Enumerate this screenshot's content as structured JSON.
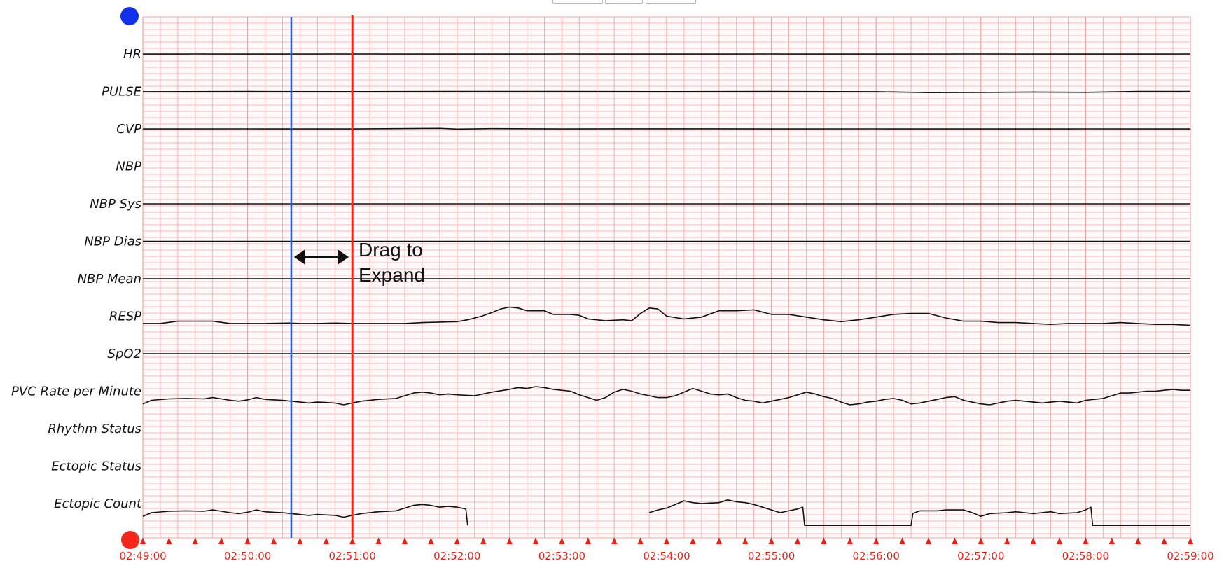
{
  "top_buttons": [
    "",
    "",
    ""
  ],
  "handles": {
    "top": {
      "color": "#1230e8"
    },
    "bottom": {
      "color": "#f2261a"
    }
  },
  "annotation": {
    "line1": "Drag to",
    "line2": "Expand"
  },
  "cursors": {
    "blue": {
      "time": "02:50:25",
      "color": "#2361e0"
    },
    "red": {
      "time": "02:51:00",
      "color": "#f2261a"
    }
  },
  "chart_data": {
    "type": "line",
    "time_range": [
      "02:49:00",
      "02:59:00"
    ],
    "grid": true,
    "grid_color": "#f3a3a3",
    "series_color": "#111111",
    "x_ticks": [
      "02:49:00",
      "02:50:00",
      "02:51:00",
      "02:52:00",
      "02:53:00",
      "02:54:00",
      "02:55:00",
      "02:56:00",
      "02:57:00",
      "02:58:00",
      "02:59:00"
    ],
    "series": [
      {
        "name": "HR",
        "points": [
          [
            0,
            0.99
          ],
          [
            30,
            1.0
          ],
          [
            60,
            0.99
          ],
          [
            120,
            1.0
          ],
          [
            180,
            0.99
          ],
          [
            240,
            1.0
          ],
          [
            300,
            0.99
          ],
          [
            360,
            1.0
          ],
          [
            420,
            0.99
          ],
          [
            480,
            1.0
          ],
          [
            540,
            0.99
          ],
          [
            600,
            1.0
          ]
        ]
      },
      {
        "name": "PULSE",
        "points": [
          [
            0,
            0.97
          ],
          [
            60,
            0.99
          ],
          [
            120,
            0.98
          ],
          [
            180,
            1.0
          ],
          [
            240,
            0.99
          ],
          [
            300,
            0.98
          ],
          [
            360,
            0.99
          ],
          [
            420,
            0.97
          ],
          [
            450,
            0.87
          ],
          [
            480,
            0.89
          ],
          [
            510,
            0.93
          ],
          [
            540,
            0.9
          ],
          [
            570,
            0.99
          ],
          [
            600,
            1.0
          ]
        ]
      },
      {
        "name": "CVP",
        "points": [
          [
            0,
            0.99
          ],
          [
            60,
            1.0
          ],
          [
            120,
            0.99
          ],
          [
            170,
            1.05
          ],
          [
            180,
            0.98
          ],
          [
            200,
            1.02
          ],
          [
            240,
            0.99
          ],
          [
            300,
            1.01
          ],
          [
            360,
            0.99
          ],
          [
            420,
            1.0
          ],
          [
            480,
            0.99
          ],
          [
            540,
            1.0
          ],
          [
            600,
            0.99
          ]
        ]
      },
      {
        "name": "NBP",
        "points": []
      },
      {
        "name": "NBP Sys",
        "points": [
          [
            0,
            1.0
          ],
          [
            600,
            1.0
          ]
        ]
      },
      {
        "name": "NBP Dias",
        "points": [
          [
            0,
            1.0
          ],
          [
            600,
            1.0
          ]
        ]
      },
      {
        "name": "NBP Mean",
        "points": [
          [
            0,
            1.0
          ],
          [
            600,
            1.0
          ]
        ]
      },
      {
        "name": "RESP",
        "points": [
          [
            0,
            0.2
          ],
          [
            10,
            0.2
          ],
          [
            20,
            0.45
          ],
          [
            40,
            0.45
          ],
          [
            50,
            0.2
          ],
          [
            70,
            0.2
          ],
          [
            84,
            0.25
          ],
          [
            90,
            0.2
          ],
          [
            100,
            0.2
          ],
          [
            110,
            0.25
          ],
          [
            120,
            0.2
          ],
          [
            140,
            0.2
          ],
          [
            150,
            0.2
          ],
          [
            160,
            0.3
          ],
          [
            170,
            0.35
          ],
          [
            180,
            0.4
          ],
          [
            186,
            0.6
          ],
          [
            190,
            0.8
          ],
          [
            194,
            1.0
          ],
          [
            200,
            1.4
          ],
          [
            205,
            1.8
          ],
          [
            210,
            2.0
          ],
          [
            215,
            1.9
          ],
          [
            220,
            1.6
          ],
          [
            230,
            1.6
          ],
          [
            235,
            1.2
          ],
          [
            245,
            1.2
          ],
          [
            250,
            1.1
          ],
          [
            255,
            0.7
          ],
          [
            265,
            0.5
          ],
          [
            275,
            0.6
          ],
          [
            280,
            0.5
          ],
          [
            285,
            1.3
          ],
          [
            290,
            1.9
          ],
          [
            295,
            1.8
          ],
          [
            300,
            1.0
          ],
          [
            310,
            0.7
          ],
          [
            320,
            0.9
          ],
          [
            330,
            1.6
          ],
          [
            340,
            1.6
          ],
          [
            350,
            1.7
          ],
          [
            360,
            1.2
          ],
          [
            370,
            1.2
          ],
          [
            380,
            0.9
          ],
          [
            390,
            0.6
          ],
          [
            400,
            0.4
          ],
          [
            410,
            0.6
          ],
          [
            420,
            0.9
          ],
          [
            430,
            1.2
          ],
          [
            440,
            1.3
          ],
          [
            450,
            1.3
          ],
          [
            460,
            0.8
          ],
          [
            470,
            0.45
          ],
          [
            480,
            0.45
          ],
          [
            490,
            0.3
          ],
          [
            500,
            0.3
          ],
          [
            510,
            0.2
          ],
          [
            520,
            0.1
          ],
          [
            530,
            0.2
          ],
          [
            540,
            0.2
          ],
          [
            550,
            0.2
          ],
          [
            560,
            0.3
          ],
          [
            570,
            0.2
          ],
          [
            580,
            0.1
          ],
          [
            590,
            0.1
          ],
          [
            600,
            0.0
          ]
        ]
      },
      {
        "name": "SpO2",
        "points": [
          [
            0,
            1.0
          ],
          [
            60,
            1.0
          ],
          [
            120,
            1.0
          ],
          [
            180,
            1.0
          ],
          [
            240,
            1.0
          ],
          [
            300,
            1.0
          ],
          [
            360,
            1.0
          ],
          [
            420,
            1.0
          ],
          [
            480,
            1.0
          ],
          [
            540,
            1.0
          ],
          [
            600,
            1.0
          ]
        ]
      },
      {
        "name": "PVC Rate per Minute",
        "points": [
          [
            0,
            -0.4
          ],
          [
            5,
            0.0
          ],
          [
            15,
            0.15
          ],
          [
            25,
            0.2
          ],
          [
            35,
            0.15
          ],
          [
            40,
            0.3
          ],
          [
            45,
            0.15
          ],
          [
            50,
            0.0
          ],
          [
            55,
            -0.1
          ],
          [
            60,
            0.05
          ],
          [
            65,
            0.3
          ],
          [
            70,
            0.1
          ],
          [
            75,
            0.05
          ],
          [
            80,
            0.0
          ],
          [
            85,
            -0.1
          ],
          [
            90,
            -0.2
          ],
          [
            95,
            -0.3
          ],
          [
            100,
            -0.2
          ],
          [
            110,
            -0.3
          ],
          [
            115,
            -0.5
          ],
          [
            120,
            -0.3
          ],
          [
            125,
            -0.1
          ],
          [
            135,
            0.1
          ],
          [
            145,
            0.2
          ],
          [
            150,
            0.5
          ],
          [
            155,
            0.8
          ],
          [
            160,
            0.9
          ],
          [
            165,
            0.8
          ],
          [
            170,
            0.6
          ],
          [
            175,
            0.7
          ],
          [
            180,
            0.6
          ],
          [
            190,
            0.5
          ],
          [
            195,
            0.7
          ],
          [
            200,
            0.9
          ],
          [
            210,
            1.2
          ],
          [
            215,
            1.4
          ],
          [
            220,
            1.3
          ],
          [
            225,
            1.5
          ],
          [
            230,
            1.4
          ],
          [
            235,
            1.2
          ],
          [
            240,
            1.1
          ],
          [
            245,
            1.0
          ],
          [
            250,
            0.6
          ],
          [
            255,
            0.3
          ],
          [
            260,
            0.0
          ],
          [
            265,
            0.3
          ],
          [
            270,
            0.9
          ],
          [
            275,
            1.2
          ],
          [
            280,
            1.0
          ],
          [
            285,
            0.7
          ],
          [
            290,
            0.5
          ],
          [
            295,
            0.3
          ],
          [
            300,
            0.3
          ],
          [
            305,
            0.5
          ],
          [
            310,
            0.9
          ],
          [
            315,
            1.3
          ],
          [
            320,
            1.0
          ],
          [
            325,
            0.7
          ],
          [
            330,
            0.6
          ],
          [
            335,
            0.7
          ],
          [
            340,
            0.3
          ],
          [
            345,
            0.0
          ],
          [
            350,
            -0.1
          ],
          [
            355,
            -0.3
          ],
          [
            360,
            -0.1
          ],
          [
            365,
            0.1
          ],
          [
            370,
            0.3
          ],
          [
            375,
            0.6
          ],
          [
            380,
            0.9
          ],
          [
            385,
            0.7
          ],
          [
            390,
            0.4
          ],
          [
            395,
            0.2
          ],
          [
            400,
            -0.2
          ],
          [
            405,
            -0.5
          ],
          [
            410,
            -0.4
          ],
          [
            415,
            -0.2
          ],
          [
            420,
            -0.1
          ],
          [
            425,
            0.1
          ],
          [
            430,
            0.2
          ],
          [
            435,
            0.0
          ],
          [
            440,
            -0.4
          ],
          [
            445,
            -0.3
          ],
          [
            450,
            -0.1
          ],
          [
            455,
            0.1
          ],
          [
            460,
            0.3
          ],
          [
            465,
            0.4
          ],
          [
            470,
            0.0
          ],
          [
            475,
            -0.2
          ],
          [
            480,
            -0.4
          ],
          [
            485,
            -0.5
          ],
          [
            490,
            -0.3
          ],
          [
            495,
            -0.1
          ],
          [
            500,
            0.0
          ],
          [
            505,
            -0.1
          ],
          [
            510,
            -0.2
          ],
          [
            515,
            -0.3
          ],
          [
            520,
            -0.2
          ],
          [
            525,
            -0.1
          ],
          [
            530,
            -0.2
          ],
          [
            535,
            -0.3
          ],
          [
            540,
            0.0
          ],
          [
            545,
            0.1
          ],
          [
            550,
            0.2
          ],
          [
            555,
            0.5
          ],
          [
            560,
            0.8
          ],
          [
            565,
            0.8
          ],
          [
            570,
            0.9
          ],
          [
            575,
            1.0
          ],
          [
            580,
            1.0
          ],
          [
            585,
            1.1
          ],
          [
            590,
            1.2
          ],
          [
            595,
            1.1
          ],
          [
            600,
            1.1
          ]
        ]
      },
      {
        "name": "Rhythm Status",
        "points": []
      },
      {
        "name": "Ectopic Status",
        "points": []
      },
      {
        "name": "Ectopic Count",
        "points": [
          [
            0,
            -0.4
          ],
          [
            5,
            0.0
          ],
          [
            15,
            0.15
          ],
          [
            25,
            0.2
          ],
          [
            35,
            0.15
          ],
          [
            40,
            0.3
          ],
          [
            45,
            0.15
          ],
          [
            50,
            0.0
          ],
          [
            55,
            -0.1
          ],
          [
            60,
            0.05
          ],
          [
            65,
            0.3
          ],
          [
            70,
            0.1
          ],
          [
            75,
            0.05
          ],
          [
            80,
            0.0
          ],
          [
            85,
            -0.1
          ],
          [
            90,
            -0.2
          ],
          [
            95,
            -0.3
          ],
          [
            100,
            -0.2
          ],
          [
            110,
            -0.3
          ],
          [
            115,
            -0.5
          ],
          [
            120,
            -0.3
          ],
          [
            125,
            -0.1
          ],
          [
            135,
            0.1
          ],
          [
            145,
            0.2
          ],
          [
            150,
            0.5
          ],
          [
            155,
            0.8
          ],
          [
            160,
            0.9
          ],
          [
            165,
            0.8
          ],
          [
            170,
            0.6
          ],
          [
            175,
            0.7
          ],
          [
            180,
            0.6
          ],
          [
            185,
            0.4
          ],
          [
            186,
            -1.4
          ],
          [
            187,
            null
          ],
          [
            290,
            0.0
          ],
          [
            295,
            0.3
          ],
          [
            300,
            0.5
          ],
          [
            305,
            0.9
          ],
          [
            310,
            1.3
          ],
          [
            315,
            1.1
          ],
          [
            320,
            1.0
          ],
          [
            330,
            1.1
          ],
          [
            335,
            1.4
          ],
          [
            340,
            1.2
          ],
          [
            345,
            1.1
          ],
          [
            350,
            0.9
          ],
          [
            355,
            0.6
          ],
          [
            360,
            0.3
          ],
          [
            365,
            0.0
          ],
          [
            370,
            0.2
          ],
          [
            375,
            0.4
          ],
          [
            378,
            0.6
          ],
          [
            379,
            -1.4
          ],
          [
            380,
            -1.4
          ],
          [
            440,
            -1.4
          ],
          [
            441,
            -0.1
          ],
          [
            445,
            0.2
          ],
          [
            455,
            0.2
          ],
          [
            460,
            0.3
          ],
          [
            470,
            0.3
          ],
          [
            475,
            0.0
          ],
          [
            480,
            -0.4
          ],
          [
            485,
            -0.1
          ],
          [
            495,
            0.0
          ],
          [
            500,
            0.1
          ],
          [
            505,
            0.0
          ],
          [
            510,
            -0.1
          ],
          [
            520,
            0.1
          ],
          [
            525,
            -0.1
          ],
          [
            535,
            0.0
          ],
          [
            540,
            0.3
          ],
          [
            543,
            0.6
          ],
          [
            544,
            -1.4
          ],
          [
            545,
            -1.4
          ],
          [
            600,
            -1.4
          ]
        ]
      }
    ]
  }
}
